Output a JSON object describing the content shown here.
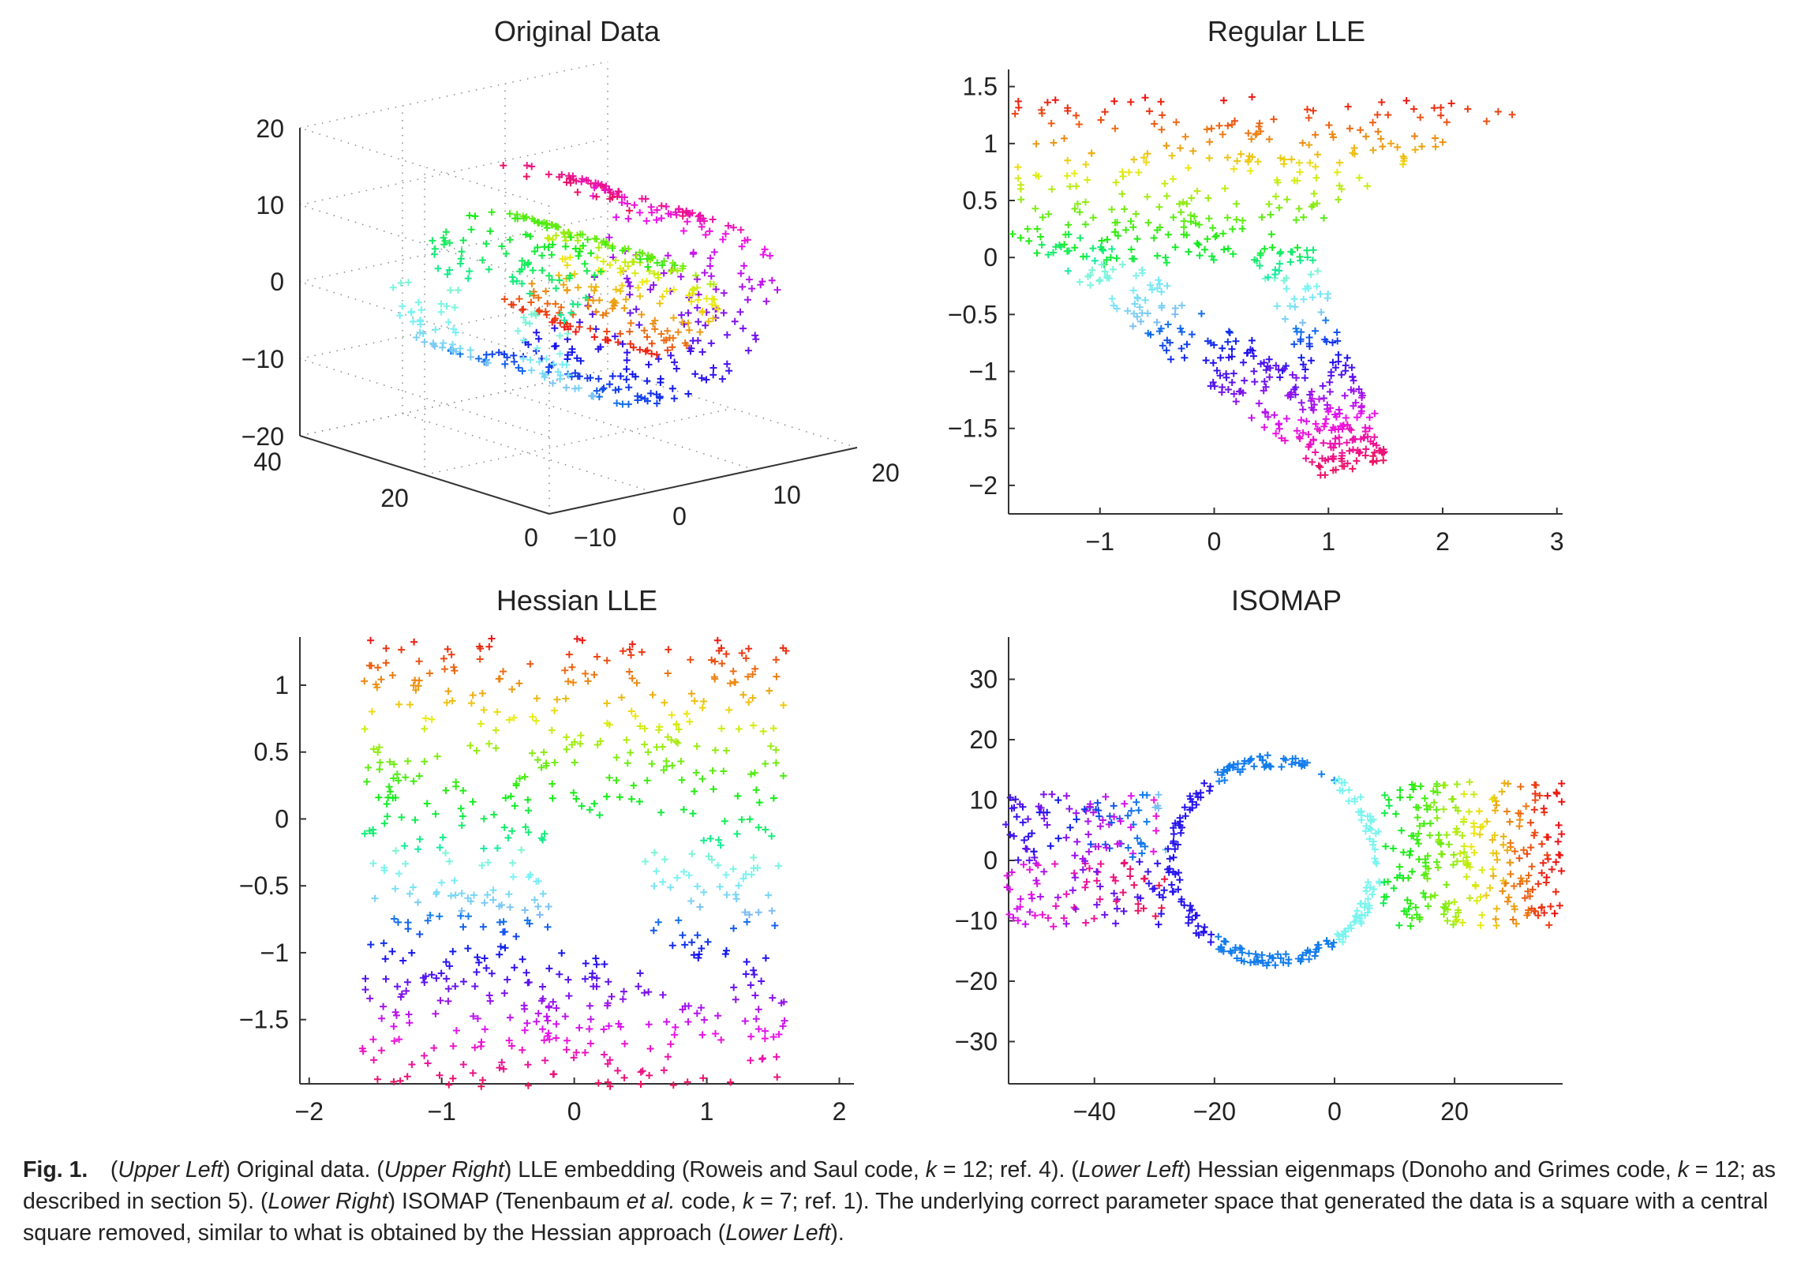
{
  "chart_data": [
    {
      "type": "scatter",
      "title": "Original Data",
      "projection": "3d",
      "marker": "+",
      "color_scale": "hsv rainbow by manifold parameter",
      "zlim": [
        -20,
        20
      ],
      "ylim": [
        0,
        40
      ],
      "xlim": [
        -10,
        20
      ],
      "z_ticks": [
        "20",
        "10",
        "0",
        "−10",
        "−20"
      ],
      "y_ticks": [
        "40",
        "20",
        "0"
      ],
      "x_ticks": [
        "−10",
        "0",
        "10",
        "20"
      ],
      "grid": true,
      "shape": "swiss roll with a hole"
    },
    {
      "type": "scatter",
      "title": "Regular LLE",
      "marker": "+",
      "xlim": [
        -1.8,
        3.05
      ],
      "ylim": [
        -2.25,
        1.65
      ],
      "x_ticks": [
        {
          "v": -1,
          "label": "−1"
        },
        {
          "v": 0,
          "label": "0"
        },
        {
          "v": 1,
          "label": "1"
        },
        {
          "v": 2,
          "label": "2"
        },
        {
          "v": 3,
          "label": "3"
        }
      ],
      "y_ticks": [
        {
          "v": 1.5,
          "label": "1.5"
        },
        {
          "v": 1,
          "label": "1"
        },
        {
          "v": 0.5,
          "label": "0.5"
        },
        {
          "v": 0,
          "label": "0"
        },
        {
          "v": -0.5,
          "label": "−0.5"
        },
        {
          "v": -1,
          "label": "−1"
        },
        {
          "v": -1.5,
          "label": "−1.5"
        },
        {
          "v": -2,
          "label": "−2"
        }
      ],
      "grid": false
    },
    {
      "type": "scatter",
      "title": "Hessian LLE",
      "marker": "+",
      "xlim": [
        -2.07,
        2.11
      ],
      "ylim": [
        -1.98,
        1.36
      ],
      "x_ticks": [
        {
          "v": -2,
          "label": "−2"
        },
        {
          "v": -1,
          "label": "−1"
        },
        {
          "v": 0,
          "label": "0"
        },
        {
          "v": 1,
          "label": "1"
        },
        {
          "v": 2,
          "label": "2"
        }
      ],
      "y_ticks": [
        {
          "v": 1,
          "label": "1"
        },
        {
          "v": 0.5,
          "label": "0.5"
        },
        {
          "v": 0,
          "label": "0"
        },
        {
          "v": -0.5,
          "label": "−0.5"
        },
        {
          "v": -1,
          "label": "−1"
        },
        {
          "v": -1.5,
          "label": "−1.5"
        }
      ],
      "point_region": {
        "x": [
          -1.6,
          1.6
        ],
        "y": [
          -2.0,
          1.35
        ],
        "hole_x": [
          -0.2,
          0.5
        ],
        "hole_y": [
          -1.0,
          0.0
        ]
      },
      "grid": false
    },
    {
      "type": "scatter",
      "title": "ISOMAP",
      "marker": "+",
      "xlim": [
        -54.3,
        38
      ],
      "ylim": [
        -37,
        37
      ],
      "x_ticks": [
        {
          "v": -40,
          "label": "−40"
        },
        {
          "v": -20,
          "label": "−20"
        },
        {
          "v": 0,
          "label": "0"
        },
        {
          "v": 20,
          "label": "20"
        }
      ],
      "y_ticks": [
        {
          "v": 30,
          "label": "30"
        },
        {
          "v": 20,
          "label": "20"
        },
        {
          "v": 10,
          "label": "10"
        },
        {
          "v": 0,
          "label": "0"
        },
        {
          "v": -10,
          "label": "−10"
        },
        {
          "v": -20,
          "label": "−20"
        },
        {
          "v": -30,
          "label": "−30"
        }
      ],
      "ring": {
        "center": [
          -10,
          0
        ],
        "radius_x": 17,
        "radius_y": 16.5
      },
      "grid": false
    }
  ],
  "caption": [
    {
      "text": "Fig. 1.",
      "style": "bold"
    },
    {
      "text": " (",
      "style": "normal"
    },
    {
      "text": "Upper Left",
      "style": "italic"
    },
    {
      "text": ") Original data. (",
      "style": "normal"
    },
    {
      "text": "Upper Right",
      "style": "italic"
    },
    {
      "text": ") LLE embedding (Roweis and Saul code, ",
      "style": "normal"
    },
    {
      "text": "k",
      "style": "italic"
    },
    {
      "text": " = 12; ref. 4). (",
      "style": "normal"
    },
    {
      "text": "Lower Left",
      "style": "italic"
    },
    {
      "text": ") Hessian eigenmaps (Donoho and Grimes code, ",
      "style": "normal"
    },
    {
      "text": "k",
      "style": "italic"
    },
    {
      "text": " = 12; as described in section 5). (",
      "style": "normal"
    },
    {
      "text": "Lower Right",
      "style": "italic"
    },
    {
      "text": ") ISOMAP (Tenenbaum ",
      "style": "normal"
    },
    {
      "text": "et al.",
      "style": "italic"
    },
    {
      "text": " code, ",
      "style": "normal"
    },
    {
      "text": "k",
      "style": "italic"
    },
    {
      "text": " = 7; ref. 1). The underlying correct parameter space that generated the data is a square with a central square removed, similar to what is obtained by the Hessian approach (",
      "style": "normal"
    },
    {
      "text": "Lower Left",
      "style": "italic"
    },
    {
      "text": ").",
      "style": "normal"
    }
  ]
}
